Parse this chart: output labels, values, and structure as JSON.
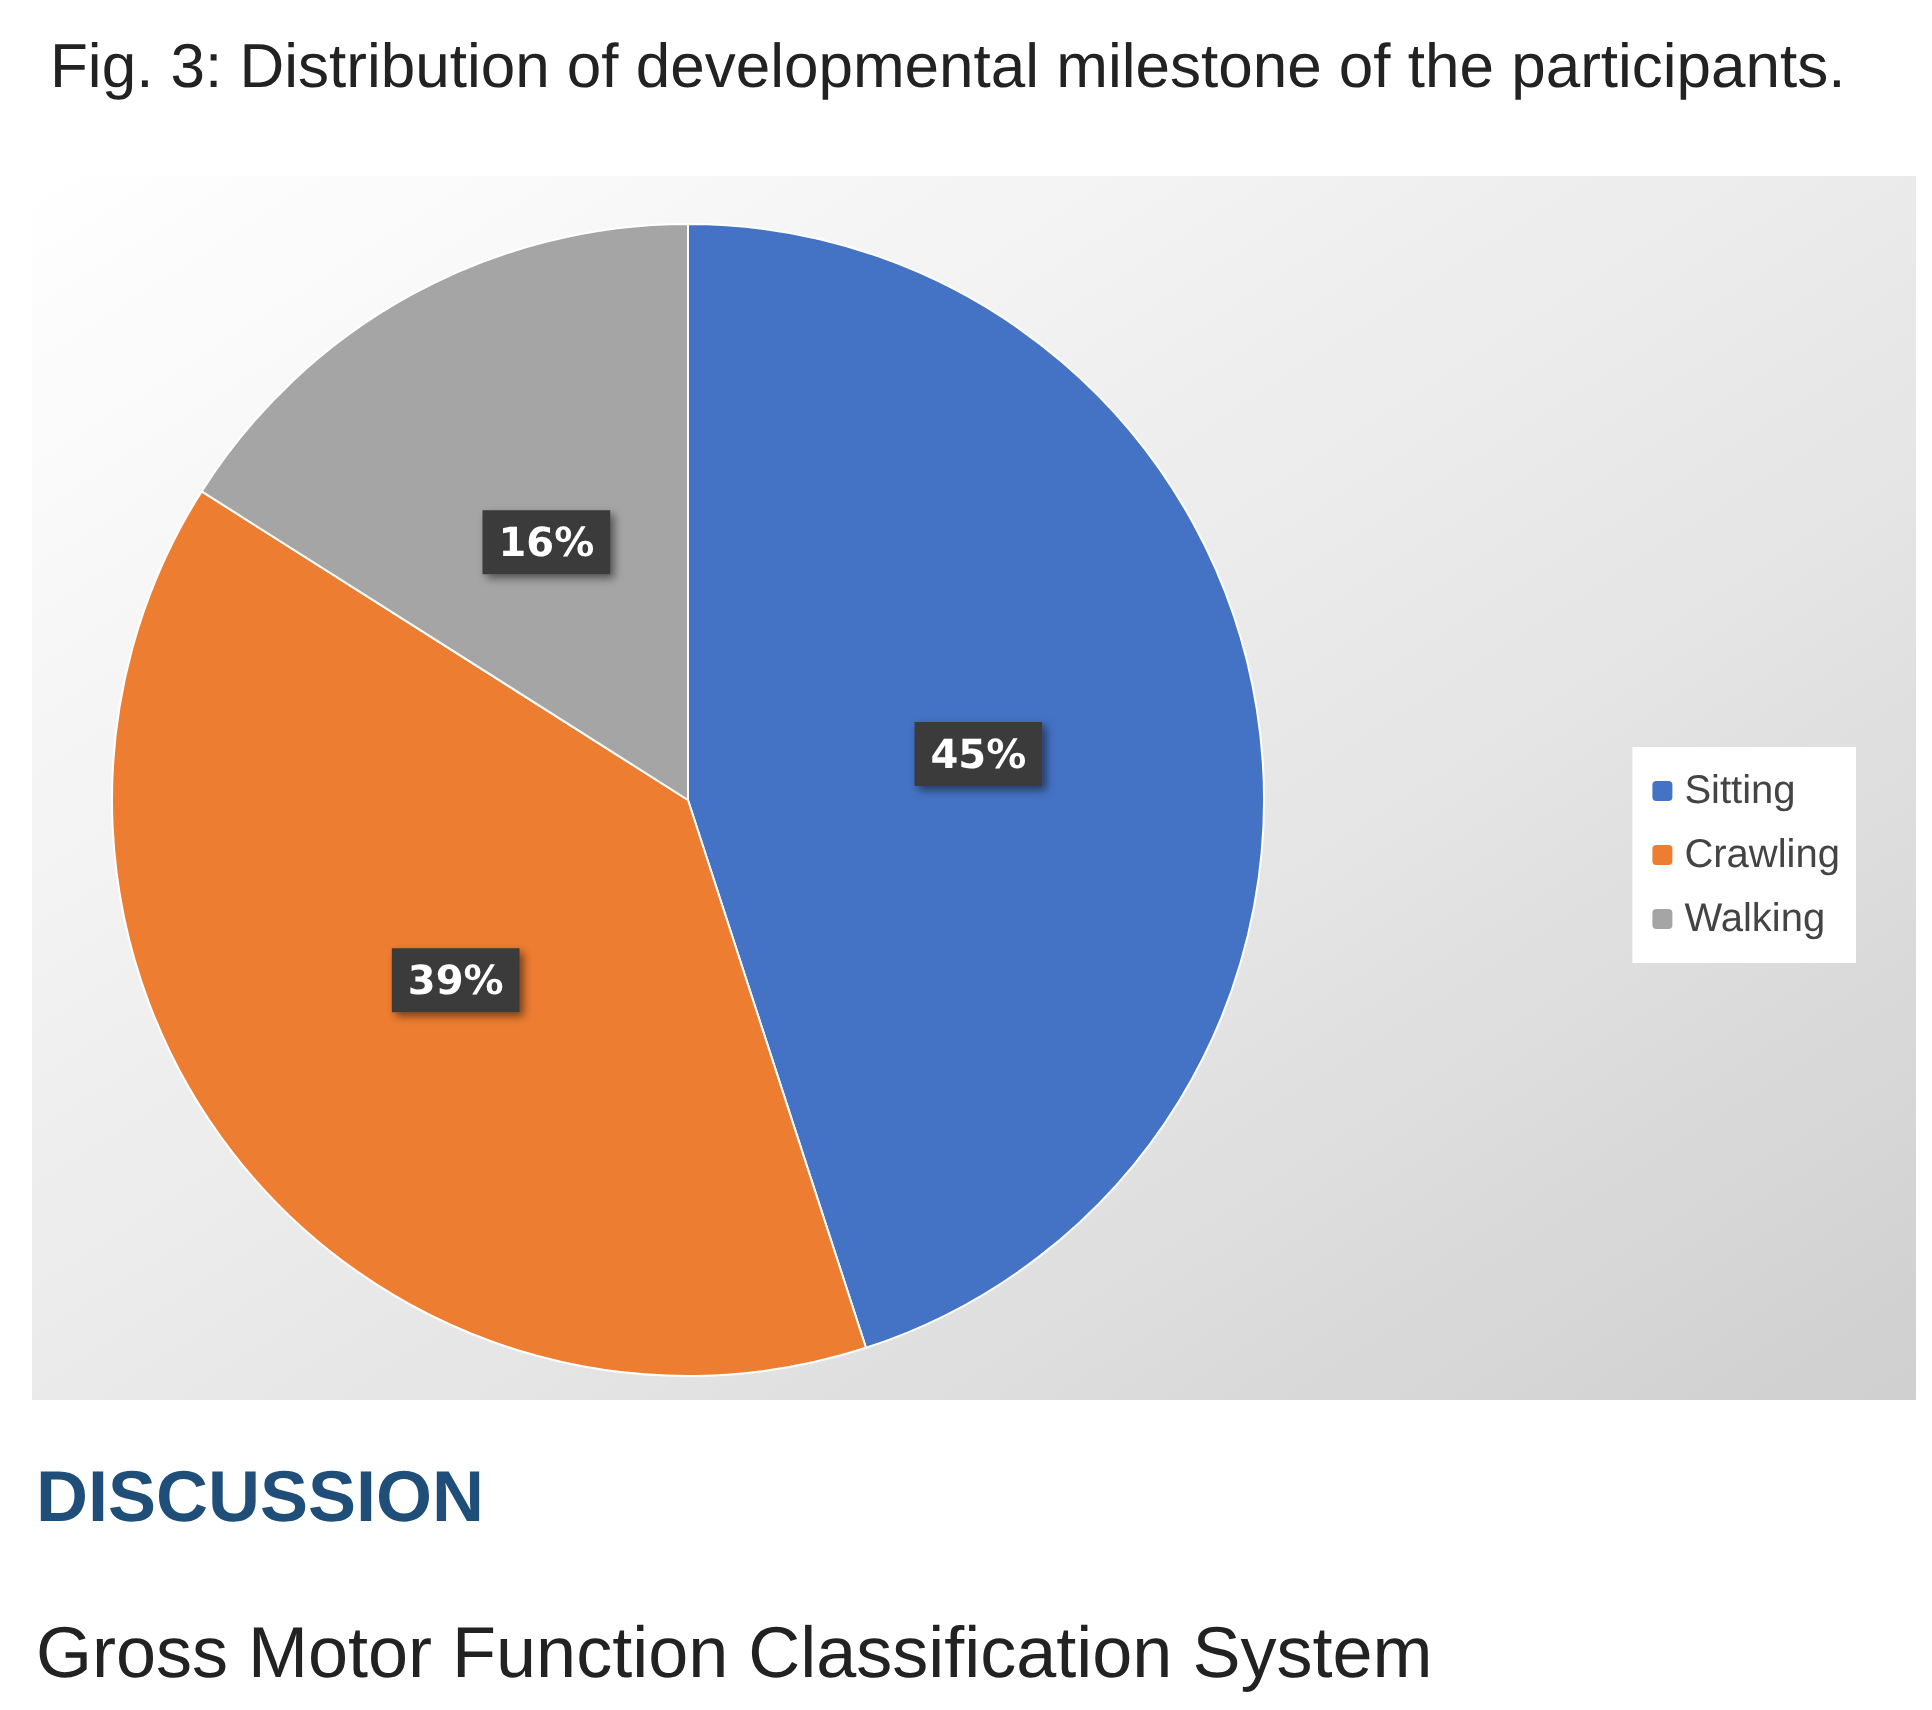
{
  "chart_data": {
    "type": "pie",
    "title": "Fig. 3: Distribution of developmental milestone of the participants.",
    "categories": [
      "Sitting",
      "Crawling",
      "Walking"
    ],
    "values": [
      45,
      39,
      16
    ],
    "value_labels": [
      "45%",
      "39%",
      "16%"
    ],
    "colors": [
      "#4472c4",
      "#ed7d31",
      "#a5a5a5"
    ],
    "legend": "right",
    "annotations": [
      "DISCUSSION",
      "Gross Motor Function Classification System"
    ]
  }
}
